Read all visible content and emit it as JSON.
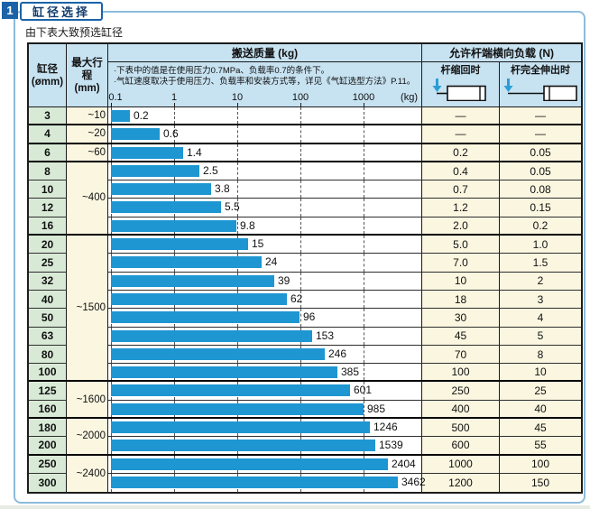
{
  "badge": "1",
  "title": "缸径选择",
  "subtitle": "由下表大致预选缸径",
  "table": {
    "col_bore_label": "缸径",
    "col_bore_unit": "(ømm)",
    "col_stroke_label": "最大行程",
    "col_stroke_unit": "(mm)",
    "chart_title": "搬送质量 (kg)",
    "load_title": "允许杆端横向负载 (N)",
    "retract_label": "杆缩回时",
    "extend_label": "杆完全伸出时",
    "notes": [
      "·下表中的值是在使用压力0.7MPa、负载率0.7的条件下。",
      "·气缸速度取决于使用压力、负载率和安装方式等，详见《气缸选型方法》P.11。"
    ],
    "empty_value": "—"
  },
  "chart_data": {
    "type": "bar",
    "title": "搬送质量 (kg)",
    "orientation": "horizontal",
    "x_scale": "log",
    "x_ticks": [
      "0.1",
      "1",
      "10",
      "100",
      "1000"
    ],
    "x_unit": "(kg)",
    "xlim": [
      0.1,
      9000
    ],
    "categories": [
      3,
      4,
      6,
      8,
      10,
      12,
      16,
      20,
      25,
      32,
      40,
      50,
      63,
      80,
      100,
      125,
      160,
      180,
      200,
      250,
      300
    ],
    "values": [
      0.2,
      0.6,
      1.4,
      2.5,
      3.8,
      5.5,
      9.8,
      15,
      24,
      39,
      62,
      96,
      153,
      246,
      385,
      601,
      985,
      1246,
      1539,
      2404,
      3462
    ],
    "bar_color": "#1e96d2",
    "grid": "dashed-vertical-log-decades"
  },
  "rows": [
    {
      "bore": "3",
      "stroke": "~10",
      "span": 1,
      "mass": 0.2,
      "mass_label": "0.2",
      "retract": "—",
      "extend": "—"
    },
    {
      "bore": "4",
      "stroke": "~20",
      "span": 1,
      "mass": 0.6,
      "mass_label": "0.6",
      "retract": "—",
      "extend": "—"
    },
    {
      "bore": "6",
      "stroke": "~60",
      "span": 1,
      "mass": 1.4,
      "mass_label": "1.4",
      "retract": "0.2",
      "extend": "0.05"
    },
    {
      "bore": "8",
      "stroke": "~400",
      "span": 4,
      "mass": 2.5,
      "mass_label": "2.5",
      "retract": "0.4",
      "extend": "0.05"
    },
    {
      "bore": "10",
      "mass": 3.8,
      "mass_label": "3.8",
      "retract": "0.7",
      "extend": "0.08"
    },
    {
      "bore": "12",
      "mass": 5.5,
      "mass_label": "5.5",
      "retract": "1.2",
      "extend": "0.15"
    },
    {
      "bore": "16",
      "mass": 9.8,
      "mass_label": "9.8",
      "retract": "2.0",
      "extend": "0.2"
    },
    {
      "bore": "20",
      "stroke": "~1500",
      "span": 8,
      "mass": 15,
      "mass_label": "15",
      "retract": "5.0",
      "extend": "1.0"
    },
    {
      "bore": "25",
      "mass": 24,
      "mass_label": "24",
      "retract": "7.0",
      "extend": "1.5"
    },
    {
      "bore": "32",
      "mass": 39,
      "mass_label": "39",
      "retract": "10",
      "extend": "2"
    },
    {
      "bore": "40",
      "mass": 62,
      "mass_label": "62",
      "retract": "18",
      "extend": "3"
    },
    {
      "bore": "50",
      "mass": 96,
      "mass_label": "96",
      "retract": "30",
      "extend": "4"
    },
    {
      "bore": "63",
      "mass": 153,
      "mass_label": "153",
      "retract": "45",
      "extend": "5"
    },
    {
      "bore": "80",
      "mass": 246,
      "mass_label": "246",
      "retract": "70",
      "extend": "8"
    },
    {
      "bore": "100",
      "mass": 385,
      "mass_label": "385",
      "retract": "100",
      "extend": "10"
    },
    {
      "bore": "125",
      "stroke": "~1600",
      "span": 2,
      "mass": 601,
      "mass_label": "601",
      "retract": "250",
      "extend": "25"
    },
    {
      "bore": "160",
      "mass": 985,
      "mass_label": "985",
      "retract": "400",
      "extend": "40"
    },
    {
      "bore": "180",
      "stroke": "~2000",
      "span": 2,
      "mass": 1246,
      "mass_label": "1246",
      "retract": "500",
      "extend": "45"
    },
    {
      "bore": "200",
      "mass": 1539,
      "mass_label": "1539",
      "retract": "600",
      "extend": "55"
    },
    {
      "bore": "250",
      "stroke": "~2400",
      "span": 2,
      "mass": 2404,
      "mass_label": "2404",
      "retract": "1000",
      "extend": "100"
    },
    {
      "bore": "300",
      "mass": 3462,
      "mass_label": "3462",
      "retract": "1200",
      "extend": "150"
    }
  ],
  "colors": {
    "accent_dark_blue": "#1a63a8",
    "panel_border": "#8cbcdc",
    "header_fill": "#c7e2f1",
    "bore_column_fill": "#d8ead6",
    "cream_fill": "#faf6e0",
    "bar_blue": "#1e96d2",
    "arrow_blue": "#2b9ed6"
  }
}
